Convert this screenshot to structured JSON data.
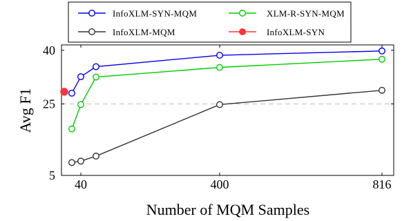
{
  "chart_data": {
    "type": "line",
    "xlabel": "Number of MQM Samples",
    "ylabel": "Avg F1",
    "x_ticks": [
      {
        "value": 40,
        "label": "40"
      },
      {
        "value": 400,
        "label": "400"
      },
      {
        "value": 816,
        "label": "816"
      }
    ],
    "y_ticks": [
      {
        "value": 5,
        "label": "5"
      },
      {
        "value": 25,
        "label": "25"
      },
      {
        "value": 40,
        "label": "40"
      }
    ],
    "xlim": [
      10,
      830
    ],
    "ylim": [
      5,
      41.5
    ],
    "reference_line": {
      "y": 25,
      "style": "dashed",
      "color": "#bbbbbb"
    },
    "grid": false,
    "legend_position": "top",
    "series": [
      {
        "name": "InfoXLM-SYN-MQM",
        "color": "#0000ee",
        "marker": "open-circle",
        "x": [
          20,
          40,
          80,
          400,
          816
        ],
        "y": [
          28.0,
          32.6,
          35.4,
          38.6,
          39.8
        ]
      },
      {
        "name": "XLM-R-SYN-MQM",
        "color": "#00cc00",
        "marker": "open-circle",
        "x": [
          20,
          40,
          80,
          400,
          816
        ],
        "y": [
          18.0,
          24.8,
          32.5,
          35.2,
          37.5
        ]
      },
      {
        "name": "InfoXLM-MQM",
        "color": "#333333",
        "marker": "open-circle",
        "x": [
          20,
          40,
          80,
          400,
          816
        ],
        "y": [
          8.6,
          9.0,
          10.4,
          24.8,
          28.8
        ]
      },
      {
        "name": "InfoXLM-SYN",
        "color": "#ff3333",
        "marker": "filled-circle",
        "x": [
          10
        ],
        "y": [
          28.4
        ]
      }
    ]
  }
}
